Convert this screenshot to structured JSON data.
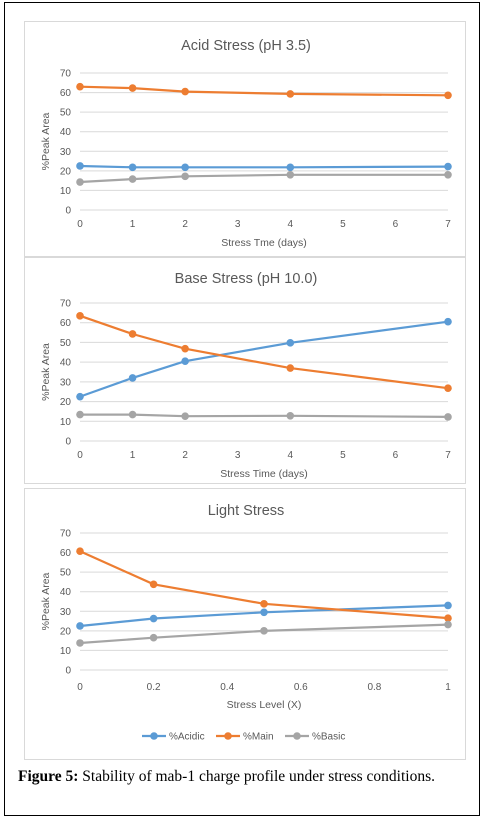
{
  "colors": {
    "acidic": "#5b9bd5",
    "main": "#ed7d31",
    "basic": "#a5a5a5",
    "grid": "#d9d9d9",
    "text": "#595959"
  },
  "legend": {
    "acidic": "%Acidic",
    "main": "%Main",
    "basic": "%Basic"
  },
  "caption": {
    "label": "Figure 5:",
    "text": " Stability of mab-1 charge profile under stress conditions."
  },
  "chart_data": [
    {
      "type": "line",
      "title": "Acid Stress (pH 3.5)",
      "xlabel": "Stress Tme (days)",
      "ylabel": "%Peak Area",
      "xlim": [
        0,
        7
      ],
      "ylim": [
        0,
        70
      ],
      "xticks": [
        "0",
        "1",
        "2",
        "3",
        "4",
        "5",
        "6",
        "7"
      ],
      "yticks": [
        "0",
        "10",
        "20",
        "30",
        "40",
        "50",
        "60",
        "70"
      ],
      "grid": true,
      "x": [
        0,
        1,
        2,
        4,
        7
      ],
      "series": [
        {
          "key": "acidic",
          "values": [
            22.5,
            21.8,
            21.8,
            21.8,
            22.2
          ]
        },
        {
          "key": "main",
          "values": [
            63.0,
            62.3,
            60.5,
            59.3,
            58.6
          ]
        },
        {
          "key": "basic",
          "values": [
            14.3,
            15.8,
            17.2,
            18.0,
            18.0
          ]
        }
      ]
    },
    {
      "type": "line",
      "title": "Base Stress (pH 10.0)",
      "xlabel": "Stress Time (days)",
      "ylabel": "%Peak Area",
      "xlim": [
        0,
        7
      ],
      "ylim": [
        0,
        70
      ],
      "xticks": [
        "0",
        "1",
        "2",
        "3",
        "4",
        "5",
        "6",
        "7"
      ],
      "yticks": [
        "0",
        "10",
        "20",
        "30",
        "40",
        "50",
        "60",
        "70"
      ],
      "grid": true,
      "x": [
        0,
        1,
        2,
        4,
        7
      ],
      "series": [
        {
          "key": "acidic",
          "values": [
            22.5,
            32.0,
            40.5,
            49.8,
            60.5
          ]
        },
        {
          "key": "main",
          "values": [
            63.5,
            54.3,
            46.8,
            37.0,
            26.8
          ]
        },
        {
          "key": "basic",
          "values": [
            13.4,
            13.4,
            12.6,
            12.8,
            12.2
          ]
        }
      ]
    },
    {
      "type": "line",
      "title": "Light Stress",
      "xlabel": "Stress Level (X)",
      "ylabel": "%Peak Area",
      "xlim": [
        0,
        1
      ],
      "ylim": [
        0,
        70
      ],
      "xticks": [
        "0",
        "0.2",
        "0.4",
        "0.6",
        "0.8",
        "1"
      ],
      "yticks": [
        "0",
        "10",
        "20",
        "30",
        "40",
        "50",
        "60",
        "70"
      ],
      "grid": true,
      "legend": "bottom",
      "x": [
        0,
        0.2,
        0.5,
        1
      ],
      "series": [
        {
          "key": "acidic",
          "values": [
            22.5,
            26.3,
            29.5,
            33.0
          ]
        },
        {
          "key": "main",
          "values": [
            60.7,
            43.8,
            33.8,
            26.5
          ]
        },
        {
          "key": "basic",
          "values": [
            13.8,
            16.5,
            20.0,
            23.2
          ]
        }
      ]
    }
  ]
}
